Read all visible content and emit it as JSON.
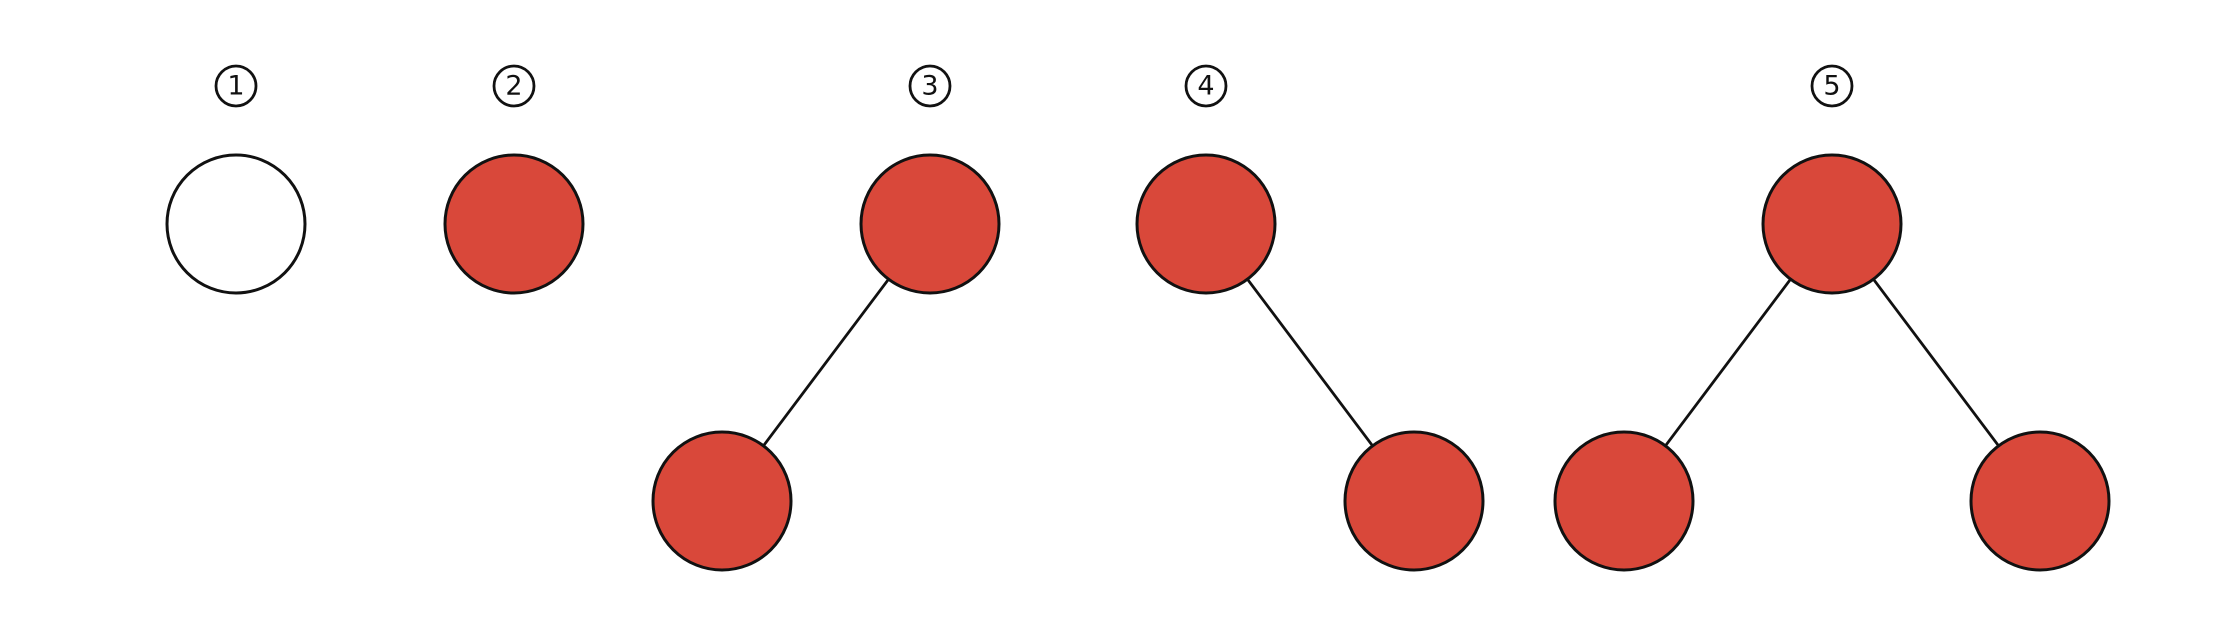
{
  "colors": {
    "filled": "#d9483a",
    "empty": "#ffffff",
    "stroke": "#111111"
  },
  "groups": [
    {
      "label": "1",
      "nodes": [
        {
          "id": "root",
          "fill": "empty"
        }
      ],
      "edges": []
    },
    {
      "label": "2",
      "nodes": [
        {
          "id": "root",
          "fill": "filled"
        }
      ],
      "edges": []
    },
    {
      "label": "3",
      "nodes": [
        {
          "id": "root",
          "fill": "filled"
        },
        {
          "id": "left",
          "fill": "filled"
        }
      ],
      "edges": [
        [
          "root",
          "left"
        ]
      ]
    },
    {
      "label": "4",
      "nodes": [
        {
          "id": "root",
          "fill": "filled"
        },
        {
          "id": "right",
          "fill": "filled"
        }
      ],
      "edges": [
        [
          "root",
          "right"
        ]
      ]
    },
    {
      "label": "5",
      "nodes": [
        {
          "id": "root",
          "fill": "filled"
        },
        {
          "id": "left",
          "fill": "filled"
        },
        {
          "id": "right",
          "fill": "filled"
        }
      ],
      "edges": [
        [
          "root",
          "left"
        ],
        [
          "root",
          "right"
        ]
      ]
    }
  ]
}
